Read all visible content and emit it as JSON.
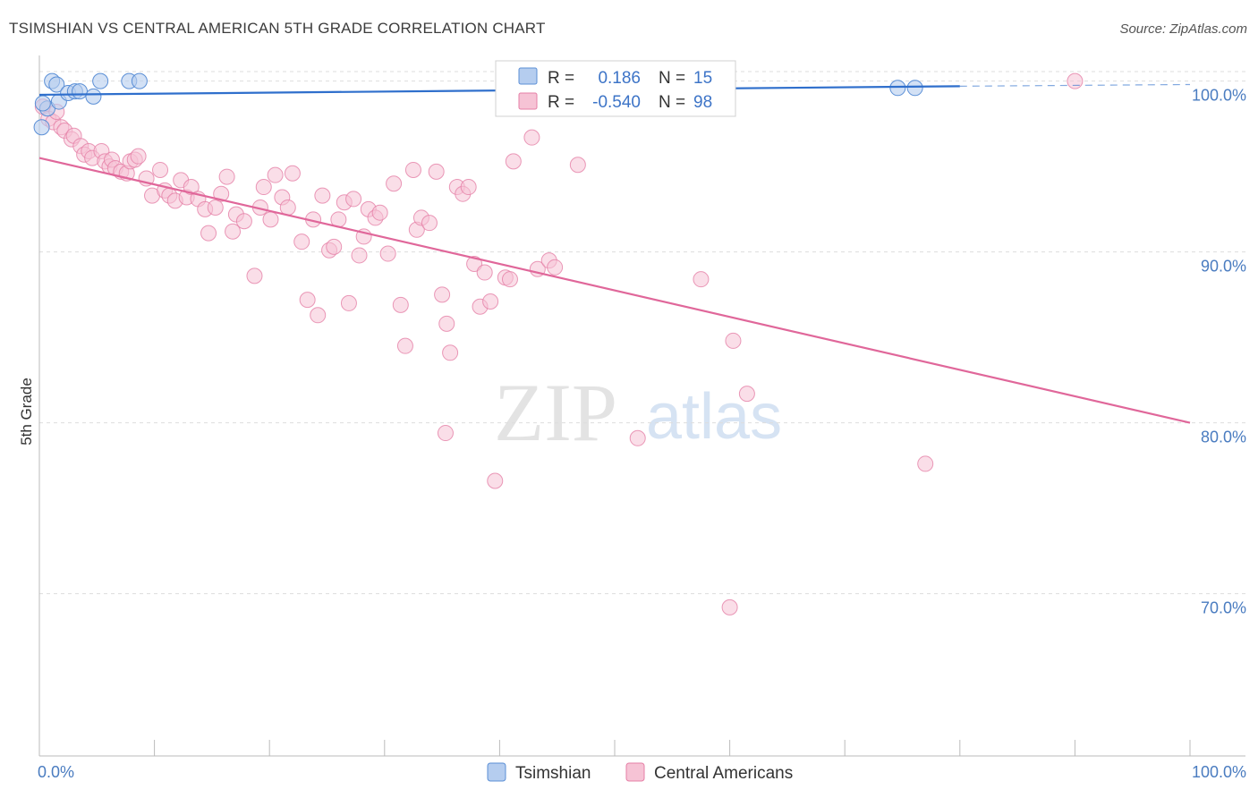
{
  "title": "TSIMSHIAN VS CENTRAL AMERICAN 5TH GRADE CORRELATION CHART",
  "source": "Source: ZipAtlas.com",
  "watermark": {
    "zip": "ZIP",
    "atlas": "atlas"
  },
  "colors": {
    "blue": "#5b8fd6",
    "blue_fill": "#b5cdef",
    "blue_line": "#2f6fcc",
    "pink": "#e57fa6",
    "pink_fill": "#f6c3d5",
    "pink_line": "#e0679a",
    "grid": "#dddddd",
    "tick_label": "#4a7cc0"
  },
  "legend": {
    "r_label": "R =",
    "n_label": "N =",
    "blue": {
      "r": " 0.186",
      "n": "15"
    },
    "pink": {
      "r": "-0.540",
      "n": "98"
    }
  },
  "chart_data": {
    "type": "scatter",
    "title": "TSIMSHIAN VS CENTRAL AMERICAN 5TH GRADE CORRELATION CHART",
    "xlabel": "",
    "ylabel": "5th Grade",
    "xlim": [
      0,
      100
    ],
    "ylim": [
      60.5,
      101.5
    ],
    "x_tick_labels": [
      "0.0%",
      "100.0%"
    ],
    "y_ticks": [
      70,
      80,
      90,
      100
    ],
    "y_tick_labels": [
      "70.0%",
      "80.0%",
      "90.0%",
      "100.0%"
    ],
    "series": [
      {
        "name": "Tsimshian",
        "color": "blue",
        "r": 0.186,
        "n": 15,
        "trend": {
          "x0": 0,
          "y0": 99.2,
          "x1": 80,
          "y1": 99.7,
          "dash_x1": 100,
          "dash_y1": 99.8
        },
        "points": [
          [
            0.2,
            97.3
          ],
          [
            0.7,
            98.4
          ],
          [
            1.1,
            100.0
          ],
          [
            1.5,
            99.8
          ],
          [
            1.7,
            98.8
          ],
          [
            2.5,
            99.3
          ],
          [
            3.1,
            99.4
          ],
          [
            3.5,
            99.4
          ],
          [
            4.7,
            99.1
          ],
          [
            5.3,
            100.0
          ],
          [
            7.8,
            100.0
          ],
          [
            8.7,
            100.0
          ],
          [
            74.6,
            99.6
          ],
          [
            76.1,
            99.6
          ],
          [
            0.3,
            98.7
          ]
        ]
      },
      {
        "name": "Central Americans",
        "color": "pink",
        "r": -0.54,
        "n": 98,
        "trend": {
          "x0": 0,
          "y0": 95.5,
          "x1": 100,
          "y1": 80.0
        },
        "points": [
          [
            0.3,
            98.5
          ],
          [
            0.8,
            97.8
          ],
          [
            1.2,
            97.6
          ],
          [
            1.5,
            98.2
          ],
          [
            1.9,
            97.3
          ],
          [
            2.2,
            97.1
          ],
          [
            2.8,
            96.6
          ],
          [
            3.0,
            96.8
          ],
          [
            3.6,
            96.2
          ],
          [
            3.9,
            95.7
          ],
          [
            4.3,
            95.9
          ],
          [
            4.6,
            95.5
          ],
          [
            5.4,
            95.9
          ],
          [
            5.7,
            95.3
          ],
          [
            6.1,
            95.0
          ],
          [
            6.3,
            95.4
          ],
          [
            6.6,
            94.9
          ],
          [
            7.1,
            94.7
          ],
          [
            7.6,
            94.6
          ],
          [
            7.9,
            95.3
          ],
          [
            8.3,
            95.4
          ],
          [
            8.6,
            95.6
          ],
          [
            9.3,
            94.3
          ],
          [
            9.8,
            93.3
          ],
          [
            10.5,
            94.8
          ],
          [
            10.9,
            93.6
          ],
          [
            11.3,
            93.3
          ],
          [
            11.8,
            93.0
          ],
          [
            12.3,
            94.2
          ],
          [
            12.8,
            93.2
          ],
          [
            13.2,
            93.8
          ],
          [
            13.8,
            93.1
          ],
          [
            14.4,
            92.5
          ],
          [
            14.7,
            91.1
          ],
          [
            15.3,
            92.6
          ],
          [
            15.8,
            93.4
          ],
          [
            16.3,
            94.4
          ],
          [
            16.8,
            91.2
          ],
          [
            17.1,
            92.2
          ],
          [
            17.8,
            91.8
          ],
          [
            18.7,
            88.6
          ],
          [
            19.2,
            92.6
          ],
          [
            19.5,
            93.8
          ],
          [
            20.1,
            91.9
          ],
          [
            20.5,
            94.5
          ],
          [
            21.1,
            93.2
          ],
          [
            21.6,
            92.6
          ],
          [
            22.0,
            94.6
          ],
          [
            22.8,
            90.6
          ],
          [
            23.3,
            87.2
          ],
          [
            23.8,
            91.9
          ],
          [
            24.2,
            86.3
          ],
          [
            24.6,
            93.3
          ],
          [
            25.2,
            90.1
          ],
          [
            25.6,
            90.3
          ],
          [
            26.0,
            91.9
          ],
          [
            26.5,
            92.9
          ],
          [
            26.9,
            87.0
          ],
          [
            27.3,
            93.1
          ],
          [
            27.8,
            89.8
          ],
          [
            28.2,
            90.9
          ],
          [
            28.6,
            92.5
          ],
          [
            29.2,
            92.0
          ],
          [
            29.6,
            92.3
          ],
          [
            30.3,
            89.9
          ],
          [
            30.8,
            94.0
          ],
          [
            31.4,
            86.9
          ],
          [
            31.8,
            84.5
          ],
          [
            32.5,
            94.8
          ],
          [
            32.8,
            91.3
          ],
          [
            33.2,
            92.0
          ],
          [
            33.9,
            91.7
          ],
          [
            34.5,
            94.7
          ],
          [
            35.0,
            87.5
          ],
          [
            35.4,
            85.8
          ],
          [
            35.7,
            84.1
          ],
          [
            36.3,
            93.8
          ],
          [
            36.8,
            93.4
          ],
          [
            37.3,
            93.8
          ],
          [
            37.8,
            89.3
          ],
          [
            38.3,
            86.8
          ],
          [
            38.7,
            88.8
          ],
          [
            39.2,
            87.1
          ],
          [
            39.6,
            76.6
          ],
          [
            40.5,
            88.5
          ],
          [
            40.9,
            88.4
          ],
          [
            43.3,
            89.0
          ],
          [
            44.3,
            89.5
          ],
          [
            44.8,
            89.1
          ],
          [
            46.8,
            95.1
          ],
          [
            35.3,
            79.4
          ],
          [
            41.2,
            95.3
          ],
          [
            42.8,
            96.7
          ],
          [
            52.0,
            79.1
          ],
          [
            57.5,
            88.4
          ],
          [
            60.0,
            69.2
          ],
          [
            60.3,
            84.8
          ],
          [
            61.5,
            81.7
          ],
          [
            77.0,
            77.6
          ],
          [
            90.0,
            100.0
          ]
        ]
      }
    ]
  },
  "bottom_legend": {
    "items": [
      {
        "label": "Tsimshian"
      },
      {
        "label": "Central Americans"
      }
    ]
  }
}
